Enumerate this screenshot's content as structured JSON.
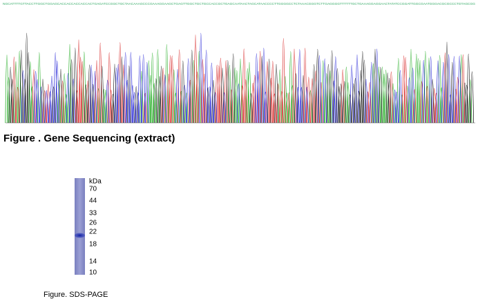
{
  "sequencing": {
    "sequence": "NGCATTTTGTTACCTTGGCTGGAGCACCACCACCACCACTGAGATCCGGCTGCTAACAAAGCCCGAAAGGAAGCTGAGTTGGCTGCTGCCACCGCTGAGCAATAACTAGCATAACCCCTTGGGGCCTCTAAACGGGTCTTGAGGGGTTTTTTGCTGAAAGGAGGAACTATATCCGGATTGGCGAATGGGACGCGCCCTGTAGCGG",
    "caption": "Figure . Gene Sequencing (extract)"
  },
  "gel": {
    "unit": "kDa",
    "markers": [
      70,
      44,
      33,
      26,
      22,
      18,
      14,
      10
    ],
    "caption": "Figure. SDS-PAGE"
  }
}
